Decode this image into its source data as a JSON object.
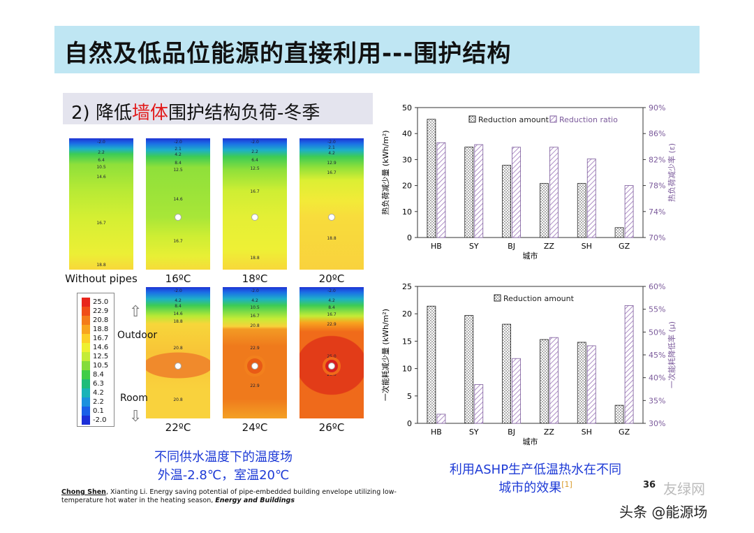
{
  "title": "自然及低品位能源的直接利用---围护结构",
  "subtitle": {
    "pre": "2) 降低",
    "red": "墙体",
    "post": "围护结构负荷-冬季"
  },
  "panels": [
    {
      "label": "Without pipes",
      "isos": [
        "-2.0",
        "2.2",
        "6.4",
        "10.5",
        "14.6",
        "16.7",
        "18.8"
      ]
    },
    {
      "label": "16ºC",
      "isos": [
        "-2.0",
        "2.1",
        "4.2",
        "8.4",
        "12.5",
        "14.6",
        "16.7"
      ]
    },
    {
      "label": "18ºC",
      "isos": [
        "-2.0",
        "2.2",
        "6.4",
        "12.5",
        "16.7",
        "18.8"
      ]
    },
    {
      "label": "20ºC",
      "isos": [
        "-2.0",
        "2.1",
        "4.2",
        "12.9",
        "16.7",
        "18.8"
      ]
    },
    {
      "label": "22ºC",
      "isos": [
        "-2.0",
        "4.2",
        "8.4",
        "14.6",
        "18.8",
        "20.8",
        "20.8"
      ]
    },
    {
      "label": "24ºC",
      "isos": [
        "-2.0",
        "4.2",
        "10.5",
        "16.7",
        "20.8",
        "22.9",
        "22.9"
      ]
    },
    {
      "label": "26ºC",
      "isos": [
        "-2.0",
        "4.2",
        "8.4",
        "16.7",
        "22.9",
        "25.0",
        "25.0"
      ]
    }
  ],
  "legend": {
    "values": [
      "25.0",
      "22.9",
      "20.8",
      "18.8",
      "16.7",
      "14.6",
      "12.5",
      "10.5",
      "8.4",
      "6.3",
      "4.2",
      "2.2",
      "0.1",
      "-2.0"
    ],
    "colors": [
      "#e8251c",
      "#f04d17",
      "#f47c1a",
      "#f8a51f",
      "#fcd027",
      "#eef030",
      "#c4ec36",
      "#84dc3a",
      "#3fcd48",
      "#1fbc7a",
      "#19b3b8",
      "#1b91de",
      "#1a5fe8",
      "#1c2fd8"
    ]
  },
  "side_labels": {
    "outdoor": "Outdoor",
    "room": "Room"
  },
  "caption_left": [
    "不同供水温度下的温度场",
    "外温-2.8℃，室温20℃"
  ],
  "caption_right": [
    "利用ASHP生产低温热水在不同",
    "城市的效果"
  ],
  "caption_ref": "[1]",
  "reference": {
    "author": "Chong Shen",
    "body": ", Xianting Li. Energy saving potential of pipe-embedded building envelope utilizing low-temperature hot water in the heating season, ",
    "journal": "Energy and Buildings"
  },
  "page_number": "36",
  "watermark": {
    "main": "头条 @能源场",
    "faint": "友绿网"
  },
  "chart_data": [
    {
      "type": "bar",
      "categories": [
        "HB",
        "SY",
        "BJ",
        "ZZ",
        "SH",
        "GZ"
      ],
      "xlabel": "城市",
      "ylabel": "热负荷减少量 (kWh/m²)",
      "y2label": "热负荷减少率 (ε)",
      "ylim": [
        0,
        50
      ],
      "yticks": [
        "0",
        "10",
        "20",
        "30",
        "40",
        "50"
      ],
      "y2lim": [
        70,
        90
      ],
      "y2ticks": [
        "70%",
        "74%",
        "78%",
        "82%",
        "86%",
        "90%"
      ],
      "legend_position": "top",
      "series": [
        {
          "name": "Reduction amount",
          "axis": "left",
          "values": [
            45.5,
            34.8,
            27.8,
            20.8,
            20.8,
            3.8
          ]
        },
        {
          "name": "Reduction ratio",
          "axis": "right",
          "values": [
            84.6,
            84.3,
            83.9,
            83.9,
            82.1,
            78.0
          ]
        }
      ]
    },
    {
      "type": "bar",
      "categories": [
        "HB",
        "SY",
        "BJ",
        "ZZ",
        "SH",
        "GZ"
      ],
      "xlabel": "城市",
      "ylabel": "一次能耗减少量 (kWh/m²)",
      "y2label": "一次能耗降低率 (μ)",
      "ylim": [
        0,
        25
      ],
      "yticks": [
        "0",
        "5",
        "10",
        "15",
        "20",
        "25"
      ],
      "y2lim": [
        30,
        60
      ],
      "y2ticks": [
        "30%",
        "35%",
        "40%",
        "45%",
        "50%",
        "55%",
        "60%"
      ],
      "legend_position": "top",
      "series": [
        {
          "name": "Reduction amount",
          "axis": "left",
          "values": [
            21.4,
            19.7,
            18.1,
            15.3,
            14.8,
            3.3
          ]
        },
        {
          "axis": "right",
          "values": [
            32.0,
            38.5,
            44.2,
            48.8,
            47.0,
            55.8
          ]
        }
      ]
    }
  ]
}
